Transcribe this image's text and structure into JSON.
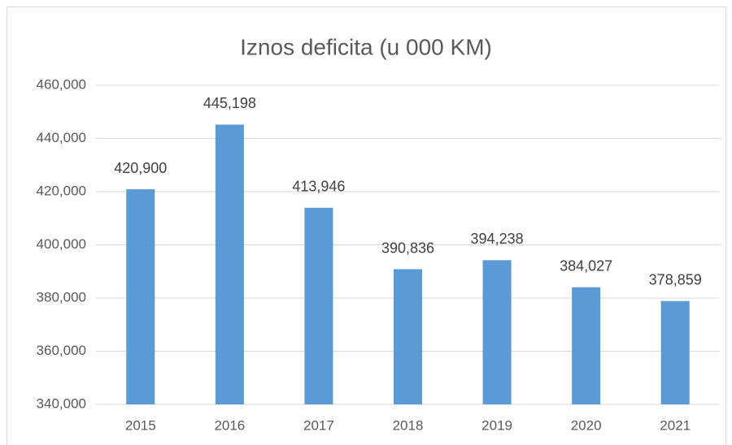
{
  "chart_data": {
    "type": "bar",
    "title": "Iznos deficita (u 000 KM)",
    "categories": [
      "2015",
      "2016",
      "2017",
      "2018",
      "2019",
      "2020",
      "2021"
    ],
    "values": [
      420900,
      445198,
      413946,
      390836,
      394238,
      384027,
      378859
    ],
    "value_labels": [
      "420,900",
      "445,198",
      "413,946",
      "390,836",
      "394,238",
      "384,027",
      "378,859"
    ],
    "color": "#5b9bd5",
    "ylim": [
      340000,
      460000
    ],
    "yticks": [
      {
        "value": 340000,
        "label": "340,000"
      },
      {
        "value": 360000,
        "label": "360,000"
      },
      {
        "value": 380000,
        "label": "380,000"
      },
      {
        "value": 400000,
        "label": "400,000"
      },
      {
        "value": 420000,
        "label": "420,000"
      },
      {
        "value": 440000,
        "label": "440,000"
      },
      {
        "value": 460000,
        "label": "460,000"
      }
    ],
    "grid": true
  }
}
